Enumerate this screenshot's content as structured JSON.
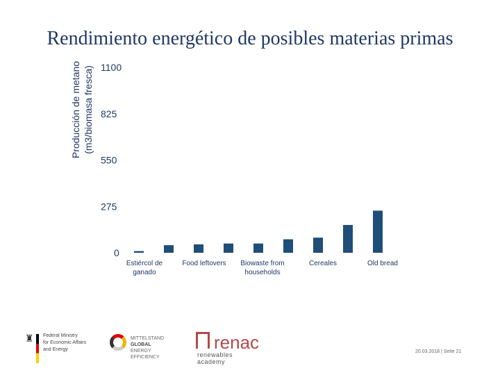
{
  "title": "Rendimiento energético de posibles materias primas",
  "chart_data": {
    "type": "bar",
    "title": "",
    "ylabel_lines": [
      "Producción de metano",
      "(m3/biomasa fresca)"
    ],
    "yticks": [
      "0",
      "275",
      "550",
      "825",
      "1100"
    ],
    "ylim": [
      0,
      1100
    ],
    "grid": false,
    "categories": [
      "Estiércol de ganado",
      "",
      "Food leftovers",
      "",
      "Biowaste from households",
      "",
      "Cereales",
      "",
      "Old bread",
      ""
    ],
    "category_labels": [
      {
        "lines": [
          "Estiércol de",
          "ganado"
        ]
      },
      {
        "lines": [
          "Food leftovers"
        ]
      },
      {
        "lines": [
          "Biowaste from",
          "households"
        ]
      },
      {
        "lines": [
          "Cereales"
        ]
      },
      {
        "lines": [
          "Old bread"
        ]
      }
    ],
    "values": [
      10,
      45,
      50,
      55,
      55,
      80,
      90,
      165,
      250,
      0
    ],
    "color": "#1f4e79"
  },
  "footer": {
    "bmwi_lines": [
      "Federal Ministry",
      "for Economic Affairs",
      "and Energy"
    ],
    "global_lines": [
      "MITTELSTAND",
      "GLOBAL",
      "ENERGY EFFICIENCY"
    ],
    "renac_word": "renac",
    "renac_sub": "renewables academy",
    "page_info": "20.03.2018 | Seite 21"
  }
}
